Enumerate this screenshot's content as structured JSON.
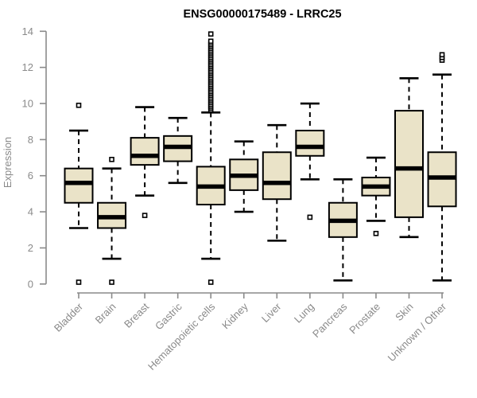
{
  "colors": {
    "box_fill": "#EAE3C8",
    "box_border": "#000000",
    "median": "#000000",
    "whisker": "#000000",
    "outlier_stroke": "#000000",
    "outlier_fill": "#ffffff",
    "axis": "#8a8a8a",
    "title": "#000000",
    "background": "#ffffff"
  },
  "chart_data": {
    "type": "boxplot",
    "title": "ENSG00000175489 - LRRC25",
    "xlabel": "",
    "ylabel": "Expression",
    "ylim": [
      0,
      14
    ],
    "yticks": [
      0,
      2,
      4,
      6,
      8,
      10,
      12,
      14
    ],
    "grid": false,
    "legend": "none",
    "categories": [
      "Bladder",
      "Brain",
      "Breast",
      "Gastric",
      "Hematopoietic cells",
      "Kidney",
      "Liver",
      "Lung",
      "Pancreas",
      "Prostate",
      "Skin",
      "Unknown / Other"
    ],
    "series": [
      {
        "category": "Bladder",
        "whisker_low": 3.1,
        "q1": 4.5,
        "median": 5.6,
        "q3": 6.4,
        "whisker_high": 8.5,
        "outliers": [
          0.1,
          9.9
        ]
      },
      {
        "category": "Brain",
        "whisker_low": 1.4,
        "q1": 3.1,
        "median": 3.7,
        "q3": 4.5,
        "whisker_high": 6.4,
        "outliers": [
          0.1,
          6.9
        ]
      },
      {
        "category": "Breast",
        "whisker_low": 4.9,
        "q1": 6.6,
        "median": 7.1,
        "q3": 8.1,
        "whisker_high": 9.8,
        "outliers": [
          3.8
        ]
      },
      {
        "category": "Gastric",
        "whisker_low": 5.6,
        "q1": 6.8,
        "median": 7.6,
        "q3": 8.2,
        "whisker_high": 9.2,
        "outliers": []
      },
      {
        "category": "Hematopoietic cells",
        "whisker_low": 1.4,
        "q1": 4.4,
        "median": 5.4,
        "q3": 6.5,
        "whisker_high": 9.5,
        "outliers": [
          0.1,
          9.65,
          9.75,
          9.85,
          9.95,
          10.05,
          10.15,
          10.25,
          10.35,
          10.45,
          10.55,
          10.65,
          10.75,
          10.85,
          10.95,
          11.05,
          11.15,
          11.25,
          11.35,
          11.45,
          11.55,
          11.65,
          11.75,
          11.85,
          11.95,
          12.05,
          12.15,
          12.25,
          12.35,
          12.45,
          12.55,
          12.65,
          12.75,
          12.85,
          12.95,
          13.05,
          13.15,
          13.25,
          13.35,
          13.45,
          13.85
        ]
      },
      {
        "category": "Kidney",
        "whisker_low": 4.0,
        "q1": 5.2,
        "median": 6.0,
        "q3": 6.9,
        "whisker_high": 7.9,
        "outliers": []
      },
      {
        "category": "Liver",
        "whisker_low": 2.4,
        "q1": 4.7,
        "median": 5.6,
        "q3": 7.3,
        "whisker_high": 8.8,
        "outliers": []
      },
      {
        "category": "Lung",
        "whisker_low": 5.8,
        "q1": 7.1,
        "median": 7.6,
        "q3": 8.5,
        "whisker_high": 10.0,
        "outliers": [
          3.7
        ]
      },
      {
        "category": "Pancreas",
        "whisker_low": 0.2,
        "q1": 2.6,
        "median": 3.5,
        "q3": 4.5,
        "whisker_high": 5.8,
        "outliers": []
      },
      {
        "category": "Prostate",
        "whisker_low": 3.5,
        "q1": 4.9,
        "median": 5.4,
        "q3": 5.9,
        "whisker_high": 7.0,
        "outliers": [
          2.8
        ]
      },
      {
        "category": "Skin",
        "whisker_low": 2.6,
        "q1": 3.7,
        "median": 6.4,
        "q3": 9.6,
        "whisker_high": 11.4,
        "outliers": []
      },
      {
        "category": "Unknown / Other",
        "whisker_low": 0.2,
        "q1": 4.3,
        "median": 5.9,
        "q3": 7.3,
        "whisker_high": 11.6,
        "outliers": [
          12.4,
          12.55,
          12.7
        ]
      }
    ]
  }
}
